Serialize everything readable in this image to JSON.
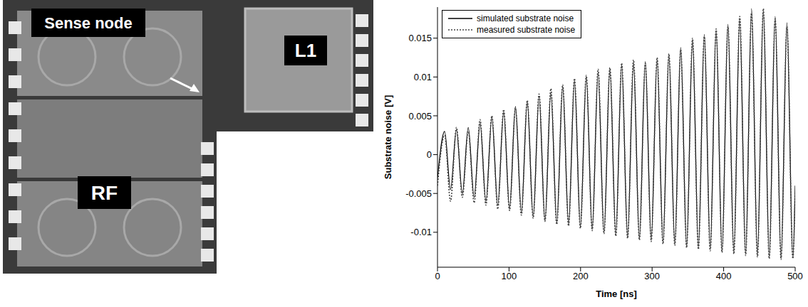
{
  "photo": {
    "labels": {
      "sense_node": "Sense node",
      "rf": "RF",
      "l1": "L1"
    }
  },
  "chart_data": {
    "type": "line",
    "x_label": "Time [ns]",
    "y_label": "Substrate noise [V]",
    "x": [
      0,
      10,
      18.25,
      26.5,
      34.75,
      43,
      51.25,
      59.5,
      67.75,
      76,
      84.25,
      92.5,
      100.75,
      109,
      117.25,
      125.5,
      133.75,
      142,
      150.25,
      158.5,
      166.75,
      175,
      183.25,
      191.5,
      199.75,
      208,
      216.25,
      224.5,
      232.75,
      241,
      249.25,
      257.5,
      265.75,
      274,
      282.25,
      290.5,
      298.75,
      307,
      315.25,
      323.5,
      331.75,
      340,
      348.25,
      356.5,
      364.75,
      373,
      381.25,
      389.5,
      397.75,
      406,
      414.25,
      422.5,
      430.75,
      439,
      447.25,
      455.5,
      463.75,
      472,
      480.25,
      488.5,
      496.75,
      500
    ],
    "series": [
      {
        "name": "simulated substrate noise",
        "color": "#000000",
        "line_style": "solid",
        "values": [
          -0.003,
          0.003,
          -0.0045,
          0.0032,
          -0.005,
          0.0035,
          -0.0055,
          0.004,
          -0.006,
          0.0048,
          -0.0065,
          0.0055,
          -0.007,
          0.0062,
          -0.0075,
          0.0068,
          -0.008,
          0.0075,
          -0.0085,
          0.008,
          -0.0088,
          0.0088,
          -0.009,
          0.0095,
          -0.0093,
          0.01,
          -0.0096,
          0.0105,
          -0.01,
          0.011,
          -0.0103,
          0.0115,
          -0.0106,
          0.0118,
          -0.0108,
          0.012,
          -0.011,
          0.0122,
          -0.0112,
          0.0128,
          -0.0115,
          0.0138,
          -0.0118,
          0.0148,
          -0.012,
          0.0155,
          -0.0122,
          0.016,
          -0.0124,
          0.0168,
          -0.0126,
          0.0175,
          -0.0128,
          0.0188,
          -0.013,
          0.0185,
          -0.0132,
          0.0178,
          -0.0133,
          0.017,
          -0.0133,
          -0.004
        ]
      },
      {
        "name": "measured substrate noise",
        "color": "#444444",
        "line_style": "dotted",
        "values": [
          -0.004,
          0.0025,
          -0.006,
          0.0035,
          -0.0055,
          0.003,
          -0.0062,
          0.0045,
          -0.0065,
          0.005,
          -0.007,
          0.0058,
          -0.0072,
          0.006,
          -0.0078,
          0.007,
          -0.0082,
          0.0078,
          -0.0086,
          0.0085,
          -0.009,
          0.009,
          -0.0092,
          0.0098,
          -0.0095,
          0.0102,
          -0.0098,
          0.011,
          -0.0102,
          0.0112,
          -0.0105,
          0.0118,
          -0.0108,
          0.0122,
          -0.011,
          0.0118,
          -0.0112,
          0.0125,
          -0.0115,
          0.013,
          -0.0117,
          0.0135,
          -0.012,
          0.015,
          -0.0122,
          0.0152,
          -0.0124,
          0.0162,
          -0.0126,
          0.0165,
          -0.0128,
          0.0178,
          -0.013,
          0.0182,
          -0.0132,
          0.0188,
          -0.0134,
          0.0175,
          -0.0135,
          0.0165,
          -0.0134,
          -0.005
        ]
      }
    ],
    "xlim": [
      0,
      500
    ],
    "xticks": [
      0,
      100,
      200,
      300,
      400,
      500
    ],
    "ylim": [
      -0.0145,
      0.019
    ],
    "yticks": [
      -0.01,
      -0.005,
      0,
      0.005,
      0.01,
      0.015
    ],
    "grid": false,
    "legend": "upper left"
  }
}
